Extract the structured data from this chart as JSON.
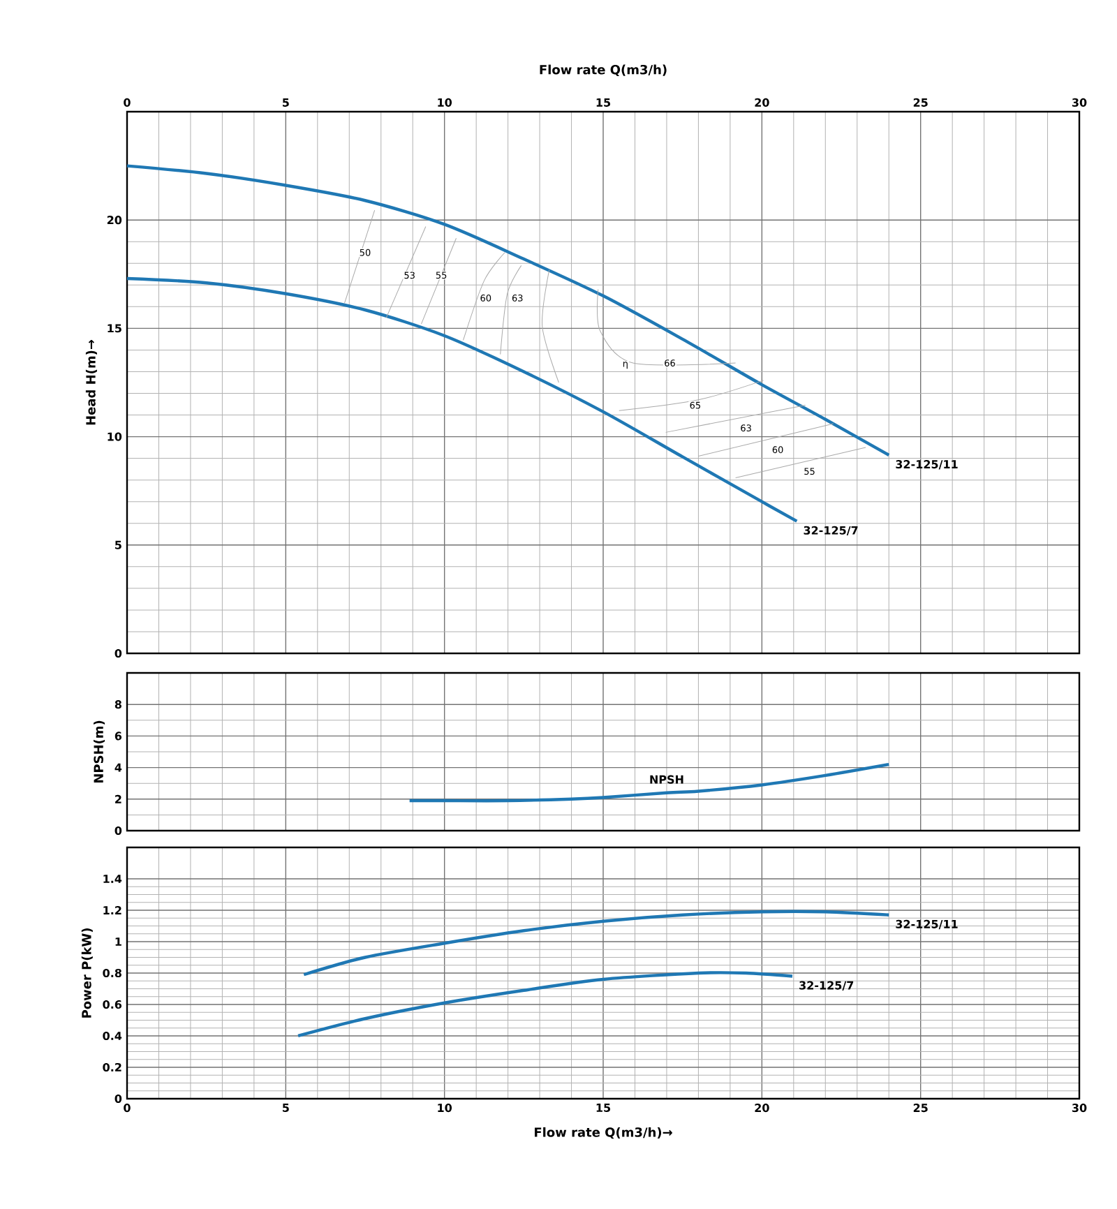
{
  "chart_data": [
    {
      "type": "line",
      "xlabel": "Flow rate Q(m3/h)",
      "ylabel": "Head H(m)→",
      "xlim": [
        0,
        30
      ],
      "xticks": [
        0,
        5,
        10,
        15,
        20,
        25,
        30
      ],
      "ylim": [
        0,
        25
      ],
      "yticks": [
        0,
        5,
        10,
        15,
        20
      ],
      "grid": true,
      "series": [
        {
          "name": "32-125/11",
          "color": "#1f78b4",
          "x": [
            0,
            2.5,
            5,
            7.5,
            10,
            12.5,
            15,
            17.5,
            20,
            22,
            24
          ],
          "values": [
            22.5,
            22.15,
            21.6,
            20.9,
            19.8,
            18.2,
            16.5,
            14.5,
            12.4,
            10.8,
            9.15
          ]
        },
        {
          "name": "32-125/7",
          "color": "#1f78b4",
          "x": [
            0,
            2.5,
            5,
            7.5,
            10,
            12.5,
            15,
            17.5,
            20,
            21.1
          ],
          "values": [
            17.3,
            17.1,
            16.6,
            15.85,
            14.66,
            13.0,
            11.15,
            9.07,
            7.0,
            6.1
          ]
        },
        {
          "color": "#aaaaaa",
          "x": [
            6.85,
            7.8
          ],
          "values": [
            16.16,
            20.45
          ]
        },
        {
          "color": "#aaaaaa",
          "x": [
            8.17,
            9.41
          ],
          "values": [
            15.5,
            19.7
          ]
        },
        {
          "color": "#aaaaaa",
          "x": [
            9.27,
            10.37
          ],
          "values": [
            15.2,
            19.16
          ]
        },
        {
          "color": "#aaaaaa",
          "x": [
            10.59,
            11.25,
            11.9
          ],
          "values": [
            14.45,
            17.2,
            18.5
          ]
        },
        {
          "color": "#aaaaaa",
          "x": [
            11.76,
            11.98,
            12.42
          ],
          "values": [
            13.8,
            16.6,
            17.9
          ]
        },
        {
          "color": "#aaaaaa",
          "x": [
            13.6,
            13.08,
            13.3
          ],
          "values": [
            12.5,
            15.1,
            17.7
          ]
        },
        {
          "color": "#aaaaaa",
          "x": [
            14.84,
            14.9,
            15.94,
            19.17
          ],
          "values": [
            16.8,
            14.9,
            13.4,
            13.4
          ]
        },
        {
          "color": "#aaaaaa",
          "x": [
            15.5,
            18.0,
            20.05
          ],
          "values": [
            11.2,
            11.7,
            12.6
          ]
        },
        {
          "color": "#aaaaaa",
          "x": [
            16.97,
            21.37
          ],
          "values": [
            10.2,
            11.45
          ]
        },
        {
          "color": "#aaaaaa",
          "x": [
            18.0,
            22.25
          ],
          "values": [
            9.1,
            10.6
          ]
        },
        {
          "color": "#aaaaaa",
          "x": [
            19.17,
            23.27
          ],
          "values": [
            8.1,
            9.5
          ]
        }
      ],
      "annotations": [
        {
          "text": "50",
          "x": 7.5,
          "y": 18.5
        },
        {
          "text": "53",
          "x": 8.9,
          "y": 17.45
        },
        {
          "text": "55",
          "x": 9.9,
          "y": 17.45
        },
        {
          "text": "60",
          "x": 11.3,
          "y": 16.4
        },
        {
          "text": "63",
          "x": 12.3,
          "y": 16.4
        },
        {
          "text": "η",
          "x": 15.7,
          "y": 13.3
        },
        {
          "text": "66",
          "x": 17.1,
          "y": 13.4
        },
        {
          "text": "65",
          "x": 17.9,
          "y": 11.45
        },
        {
          "text": "63",
          "x": 19.5,
          "y": 10.4
        },
        {
          "text": "60",
          "x": 20.5,
          "y": 9.4
        },
        {
          "text": "55",
          "x": 21.5,
          "y": 8.4
        }
      ]
    },
    {
      "type": "line",
      "ylabel": "NPSH(m)",
      "xlim": [
        0,
        30
      ],
      "ylim": [
        0,
        10
      ],
      "yticks": [
        0,
        2,
        4,
        6,
        8
      ],
      "grid": true,
      "tick_labels": "y",
      "series": [
        {
          "name": "NPSH",
          "color": "#1f78b4",
          "x": [
            8.9,
            10,
            12,
            14,
            15,
            17,
            18,
            20,
            22,
            24
          ],
          "values": [
            1.9,
            1.9,
            1.9,
            2.0,
            2.1,
            2.4,
            2.5,
            2.9,
            3.5,
            4.2
          ]
        }
      ]
    },
    {
      "type": "line",
      "xlabel": "Flow rate Q(m3/h)→",
      "ylabel": "Power P(kW)",
      "xlim": [
        0,
        30
      ],
      "xticks": [
        0,
        5,
        10,
        15,
        20,
        25,
        30
      ],
      "ylim": [
        0,
        1.6
      ],
      "yticks": [
        0,
        0.2,
        0.4,
        0.6,
        0.8,
        1,
        1.2,
        1.4
      ],
      "grid": true,
      "series": [
        {
          "name": "32-125/11",
          "color": "#1f78b4",
          "x": [
            5.57,
            7.5,
            10,
            12.5,
            15,
            17.5,
            20,
            22,
            24
          ],
          "values": [
            0.79,
            0.9,
            0.99,
            1.07,
            1.13,
            1.17,
            1.19,
            1.19,
            1.17
          ]
        },
        {
          "name": "32-125/7",
          "color": "#1f78b4",
          "x": [
            5.39,
            7.5,
            10,
            12.5,
            15,
            18,
            19.5,
            20.96
          ],
          "values": [
            0.4,
            0.51,
            0.61,
            0.69,
            0.76,
            0.8,
            0.8,
            0.78
          ]
        }
      ]
    }
  ]
}
